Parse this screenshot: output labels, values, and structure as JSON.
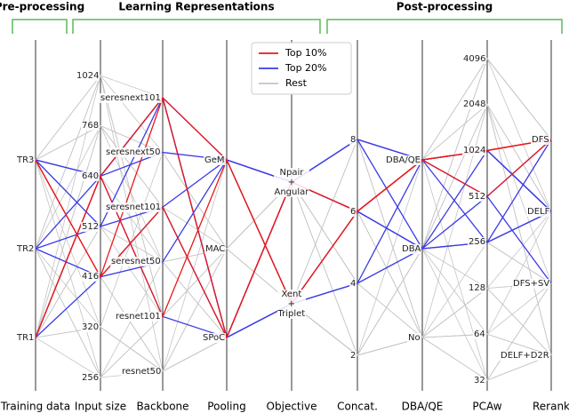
{
  "chart_data": {
    "type": "parallel",
    "groups": [
      "Pre-processing",
      "Learning Representations",
      "Post-processing"
    ],
    "axes": [
      {
        "label": "Training data",
        "categories": [
          "TR1",
          "TR2",
          "TR3"
        ]
      },
      {
        "label": "Input size",
        "categories": [
          "256",
          "320",
          "416",
          "512",
          "640",
          "768",
          "1024"
        ]
      },
      {
        "label": "Backbone",
        "categories": [
          "resnet50",
          "resnet101",
          "seresnet50",
          "seresnet101",
          "seresnext50",
          "seresnext101"
        ]
      },
      {
        "label": "Pooling",
        "categories": [
          "SPoC",
          "MAC",
          "GeM"
        ]
      },
      {
        "label": "Objective",
        "categories": [
          "Xent\n+\nTriplet",
          "Npair\n+\nAngular"
        ]
      },
      {
        "label": "Concat.",
        "categories": [
          "2",
          "4",
          "6",
          "8"
        ]
      },
      {
        "label": "DBA/QE",
        "categories": [
          "No",
          "DBA",
          "DBA/QE"
        ]
      },
      {
        "label": "PCAw",
        "categories": [
          "32",
          "64",
          "128",
          "256",
          "512",
          "1024",
          "2048",
          "4096"
        ]
      },
      {
        "label": "Rerank",
        "categories": [
          "DELF+D2R",
          "DFS+SV",
          "DELF",
          "DFS"
        ]
      }
    ],
    "legend": "upper center",
    "series": [
      {
        "name": "Top 10%",
        "color": "#e8191b",
        "lines": [
          [
            "TR3",
            "416",
            "seresnext101",
            "SPoC",
            "Npair\n+\nAngular",
            "6",
            "DBA/QE",
            "1024",
            "DFS"
          ],
          [
            "TR1",
            "640",
            "resnet101",
            "GeM",
            "Xent\n+\nTriplet",
            "6",
            "DBA/QE",
            "512",
            "DFS"
          ],
          [
            "TR3",
            "416",
            "seresnet101",
            "SPoC",
            "Npair\n+\nAngular",
            "6",
            "DBA/QE",
            "1024",
            "DFS"
          ],
          [
            "TR1",
            "640",
            "seresnext101",
            "GeM",
            "Xent\n+\nTriplet",
            "6",
            "DBA/QE",
            "1024",
            "DFS"
          ]
        ]
      },
      {
        "name": "Top 20%",
        "color": "#3b3be6",
        "lines": [
          [
            "TR3",
            "640",
            "seresnext50",
            "GeM",
            "Npair\n+\nAngular",
            "8",
            "DBA",
            "256",
            "DELF"
          ],
          [
            "TR2",
            "512",
            "seresnext101",
            "SPoC",
            "Xent\n+\nTriplet",
            "4",
            "DBA/QE",
            "1024",
            "DELF"
          ],
          [
            "TR1",
            "416",
            "seresnet101",
            "GeM",
            "Npair\n+\nAngular",
            "6",
            "DBA",
            "512",
            "DFS"
          ],
          [
            "TR2",
            "640",
            "seresnext101",
            "GeM",
            "Xent\n+\nTriplet",
            "4",
            "DBA",
            "256",
            "DFS"
          ],
          [
            "TR3",
            "512",
            "seresnet101",
            "SPoC",
            "Npair\n+\nAngular",
            "8",
            "DBA/QE",
            "1024",
            "DELF"
          ],
          [
            "TR1",
            "640",
            "resnet101",
            "SPoC",
            "Xent\n+\nTriplet",
            "6",
            "DBA/QE",
            "256",
            "DELF"
          ],
          [
            "TR2",
            "416",
            "seresnet50",
            "GeM",
            "Npair\n+\nAngular",
            "8",
            "DBA/QE",
            "512",
            "DFS+SV"
          ],
          [
            "TR3",
            "640",
            "seresnext101",
            "SPoC",
            "Npair\n+\nAngular",
            "6",
            "DBA",
            "1024",
            "DELF"
          ]
        ]
      },
      {
        "name": "Rest",
        "color": "#c4c4c4",
        "lines": [
          [
            "TR1",
            "256",
            "resnet50",
            "SPoC",
            "Xent\n+\nTriplet",
            "2",
            "No",
            "32",
            "DELF+D2R"
          ],
          [
            "TR1",
            "320",
            "resnet50",
            "MAC",
            "Xent\n+\nTriplet",
            "2",
            "No",
            "64",
            "DELF+D2R"
          ],
          [
            "TR2",
            "256",
            "resnet101",
            "MAC",
            "Npair\n+\nAngular",
            "4",
            "No",
            "128",
            "DFS+SV"
          ],
          [
            "TR3",
            "768",
            "seresnet50",
            "MAC",
            "Xent\n+\nTriplet",
            "2",
            "DBA",
            "128",
            "DELF+D2R"
          ],
          [
            "TR3",
            "1024",
            "seresnext101",
            "GeM",
            "Npair\n+\nAngular",
            "8",
            "DBA/QE",
            "4096",
            "DFS"
          ],
          [
            "TR2",
            "1024",
            "seresnext50",
            "MAC",
            "Npair\n+\nAngular",
            "6",
            "DBA",
            "2048",
            "DELF"
          ],
          [
            "TR1",
            "768",
            "seresnet101",
            "SPoC",
            "Xent\n+\nTriplet",
            "4",
            "DBA/QE",
            "2048",
            "DFS+SV"
          ],
          [
            "TR2",
            "320",
            "resnet50",
            "SPoC",
            "Xent\n+\nTriplet",
            "2",
            "No",
            "64",
            "DFS+SV"
          ],
          [
            "TR3",
            "256",
            "resnet101",
            "GeM",
            "Npair\n+\nAngular",
            "4",
            "DBA",
            "32",
            "DELF+D2R"
          ],
          [
            "TR1",
            "512",
            "seresnet50",
            "MAC",
            "Xent\n+\nTriplet",
            "6",
            "No",
            "128",
            "DELF"
          ],
          [
            "TR2",
            "768",
            "seresnext50",
            "GeM",
            "Xent\n+\nTriplet",
            "8",
            "DBA",
            "4096",
            "DFS"
          ],
          [
            "TR3",
            "320",
            "resnet50",
            "MAC",
            "Npair\n+\nAngular",
            "2",
            "No",
            "256",
            "DFS+SV"
          ],
          [
            "TR1",
            "1024",
            "resnet101",
            "GeM",
            "Npair\n+\nAngular",
            "4",
            "DBA/QE",
            "2048",
            "DELF+D2R"
          ],
          [
            "TR2",
            "416",
            "resnet50",
            "SPoC",
            "Xent\n+\nTriplet",
            "2",
            "DBA",
            "64",
            "DELF"
          ],
          [
            "TR3",
            "512",
            "seresnet50",
            "SPoC",
            "Xent\n+\nTriplet",
            "4",
            "No",
            "32",
            "DFS+SV"
          ],
          [
            "TR1",
            "768",
            "seresnext50",
            "GeM",
            "Npair\n+\nAngular",
            "8",
            "DBA/QE",
            "4096",
            "DFS"
          ],
          [
            "TR2",
            "1024",
            "resnet101",
            "SPoC",
            "Xent\n+\nTriplet",
            "6",
            "No",
            "128",
            "DELF+D2R"
          ],
          [
            "TR3",
            "768",
            "seresnet101",
            "MAC",
            "Npair\n+\nAngular",
            "2",
            "DBA",
            "512",
            "DFS+SV"
          ],
          [
            "TR1",
            "320",
            "seresnext50",
            "MAC",
            "Xent\n+\nTriplet",
            "4",
            "DBA",
            "2048",
            "DELF"
          ],
          [
            "TR2",
            "256",
            "seresnet50",
            "GeM",
            "Npair\n+\nAngular",
            "8",
            "No",
            "64",
            "DELF+D2R"
          ],
          [
            "TR3",
            "416",
            "resnet50",
            "SPoC",
            "Xent\n+\nTriplet",
            "2",
            "DBA/QE",
            "256",
            "DFS+SV"
          ],
          [
            "TR1",
            "512",
            "resnet101",
            "MAC",
            "Npair\n+\nAngular",
            "6",
            "DBA",
            "4096",
            "DELF"
          ],
          [
            "TR2",
            "640",
            "seresnet50",
            "SPoC",
            "Npair\n+\nAngular",
            "4",
            "DBA/QE",
            "32",
            "DFS+SV"
          ],
          [
            "TR3",
            "1024",
            "resnet50",
            "GeM",
            "Xent\n+\nTriplet",
            "8",
            "No",
            "2048",
            "DELF+D2R"
          ]
        ]
      }
    ]
  }
}
